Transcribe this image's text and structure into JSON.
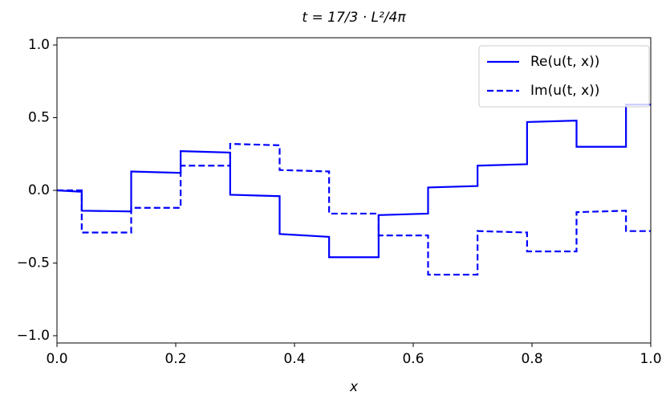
{
  "chart_data": {
    "type": "line",
    "title": "t = 17/3 · L²/4π",
    "xlabel": "x",
    "x": [
      0,
      0.0417,
      0.0417,
      0.125,
      0.125,
      0.2083,
      0.2083,
      0.2917,
      0.2917,
      0.375,
      0.375,
      0.4583,
      0.4583,
      0.5417,
      0.5417,
      0.625,
      0.625,
      0.7083,
      0.7083,
      0.7917,
      0.7917,
      0.875,
      0.875,
      0.9583,
      0.9583,
      1
    ],
    "series": [
      {
        "name": "Re(u(t, x))",
        "color": "#0000ff",
        "dash": false,
        "values": [
          0,
          -0.01,
          -0.14,
          -0.145,
          0.13,
          0.12,
          0.27,
          0.26,
          -0.03,
          -0.04,
          -0.3,
          -0.32,
          -0.46,
          -0.46,
          -0.17,
          -0.16,
          0.02,
          0.03,
          0.17,
          0.18,
          0.47,
          0.48,
          0.3,
          0.3,
          0.59,
          0.59
        ]
      },
      {
        "name": "Im(u(t, x))",
        "color": "#0000ff",
        "dash": true,
        "values": [
          0,
          0,
          -0.29,
          -0.29,
          -0.12,
          -0.12,
          0.17,
          0.17,
          0.32,
          0.31,
          0.14,
          0.13,
          -0.16,
          -0.16,
          -0.31,
          -0.31,
          -0.58,
          -0.58,
          -0.28,
          -0.29,
          -0.42,
          -0.42,
          -0.15,
          -0.14,
          -0.28,
          -0.28
        ]
      }
    ],
    "xlim": [
      0,
      1
    ],
    "xticks": [
      {
        "value": 0,
        "label": "0.0"
      },
      0.2,
      0.4,
      0.6,
      0.8,
      {
        "value": 1,
        "label": "1.0"
      }
    ],
    "ylim": [
      -1.05,
      1.05
    ],
    "yticks": [
      {
        "value": -1,
        "label": "−1.0"
      },
      {
        "value": -0.5,
        "label": "−0.5"
      },
      {
        "value": 0,
        "label": "0.0"
      },
      0.5,
      {
        "value": 1,
        "label": "1.0"
      }
    ],
    "legend": "upper right",
    "grid": false
  }
}
